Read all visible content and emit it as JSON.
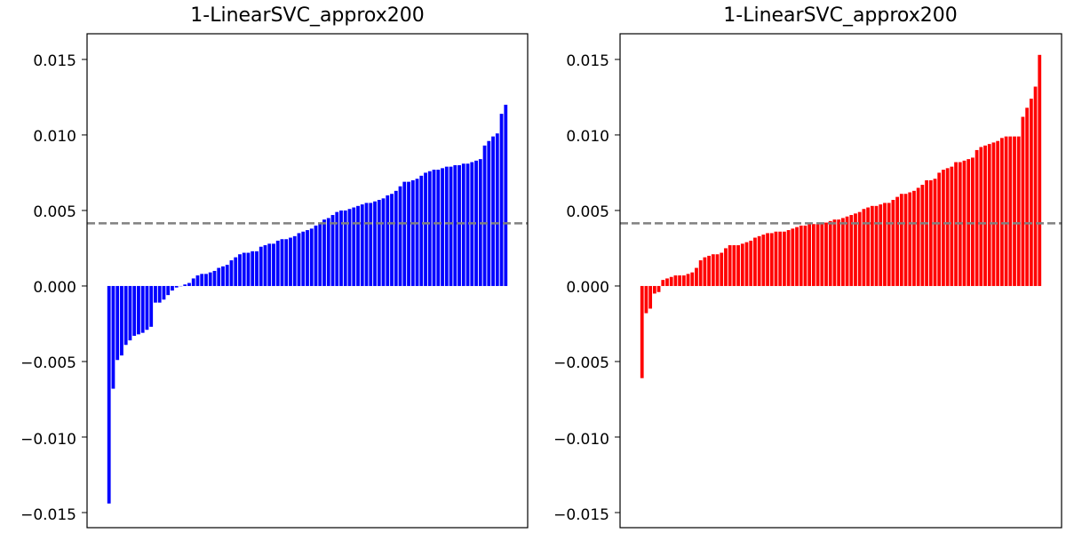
{
  "chart_data": [
    {
      "type": "bar",
      "title": "1-LinearSVC_approx200",
      "xlabel": "",
      "ylabel": "",
      "x_ticks_visible": false,
      "ylim": [
        -0.016,
        0.0167
      ],
      "yticks": [
        -0.015,
        -0.01,
        -0.005,
        0.0,
        0.005,
        0.01,
        0.015
      ],
      "ytick_labels": [
        "−0.015",
        "−0.010",
        "−0.005",
        "0.000",
        "0.005",
        "0.010",
        "0.015"
      ],
      "bar_color": "#0000ff",
      "reference_line": {
        "y": 0.00415,
        "color": "#808080",
        "style": "dashed"
      },
      "values": [
        -0.0144,
        -0.0068,
        -0.0049,
        -0.0046,
        -0.0039,
        -0.0036,
        -0.0033,
        -0.0032,
        -0.0031,
        -0.0029,
        -0.0027,
        -0.0011,
        -0.0011,
        -0.0009,
        -0.0006,
        -0.0003,
        -0.0001,
        0.0,
        0.0001,
        0.0002,
        0.0005,
        0.0007,
        0.0008,
        0.0008,
        0.0009,
        0.001,
        0.0012,
        0.0013,
        0.0014,
        0.0017,
        0.0019,
        0.0021,
        0.0022,
        0.0022,
        0.0023,
        0.0023,
        0.0026,
        0.0027,
        0.0028,
        0.0028,
        0.003,
        0.0031,
        0.0031,
        0.0032,
        0.0033,
        0.0035,
        0.0036,
        0.0037,
        0.0038,
        0.004,
        0.0042,
        0.0044,
        0.0045,
        0.0047,
        0.0049,
        0.005,
        0.005,
        0.0051,
        0.0052,
        0.0053,
        0.0054,
        0.0055,
        0.0055,
        0.0056,
        0.0057,
        0.0058,
        0.006,
        0.0061,
        0.0063,
        0.0066,
        0.0069,
        0.0069,
        0.007,
        0.0071,
        0.0073,
        0.0075,
        0.0076,
        0.0077,
        0.0077,
        0.0078,
        0.0079,
        0.0079,
        0.008,
        0.008,
        0.0081,
        0.0081,
        0.0082,
        0.0083,
        0.0084,
        0.0093,
        0.0096,
        0.0099,
        0.0101,
        0.0114,
        0.012
      ]
    },
    {
      "type": "bar",
      "title": "1-LinearSVC_approx200",
      "xlabel": "",
      "ylabel": "",
      "x_ticks_visible": false,
      "ylim": [
        -0.016,
        0.0167
      ],
      "yticks": [
        -0.015,
        -0.01,
        -0.005,
        0.0,
        0.005,
        0.01,
        0.015
      ],
      "ytick_labels": [
        "−0.015",
        "−0.010",
        "−0.005",
        "0.000",
        "0.005",
        "0.010",
        "0.015"
      ],
      "bar_color": "#ff0000",
      "reference_line": {
        "y": 0.00415,
        "color": "#808080",
        "style": "dashed"
      },
      "values": [
        -0.0061,
        -0.0018,
        -0.0015,
        -0.0005,
        -0.0004,
        0.0004,
        0.0005,
        0.0006,
        0.0007,
        0.0007,
        0.0007,
        0.0008,
        0.0009,
        0.0012,
        0.0017,
        0.0019,
        0.002,
        0.0021,
        0.0021,
        0.0022,
        0.0025,
        0.0027,
        0.0027,
        0.0027,
        0.0028,
        0.0029,
        0.003,
        0.0032,
        0.0033,
        0.0034,
        0.0035,
        0.0035,
        0.0036,
        0.0036,
        0.0036,
        0.0037,
        0.0038,
        0.0039,
        0.004,
        0.004,
        0.0041,
        0.0041,
        0.0041,
        0.0042,
        0.0042,
        0.0043,
        0.0044,
        0.0044,
        0.0045,
        0.0046,
        0.0047,
        0.0048,
        0.0049,
        0.0051,
        0.0052,
        0.0053,
        0.0053,
        0.0054,
        0.0055,
        0.0055,
        0.0057,
        0.0059,
        0.0061,
        0.0061,
        0.0062,
        0.0063,
        0.0065,
        0.0067,
        0.007,
        0.007,
        0.0071,
        0.0075,
        0.0077,
        0.0078,
        0.0079,
        0.0082,
        0.0082,
        0.0083,
        0.0084,
        0.0085,
        0.009,
        0.0092,
        0.0093,
        0.0094,
        0.0095,
        0.0096,
        0.0098,
        0.0099,
        0.0099,
        0.0099,
        0.0099,
        0.0112,
        0.0118,
        0.0124,
        0.0132,
        0.0153
      ]
    }
  ]
}
